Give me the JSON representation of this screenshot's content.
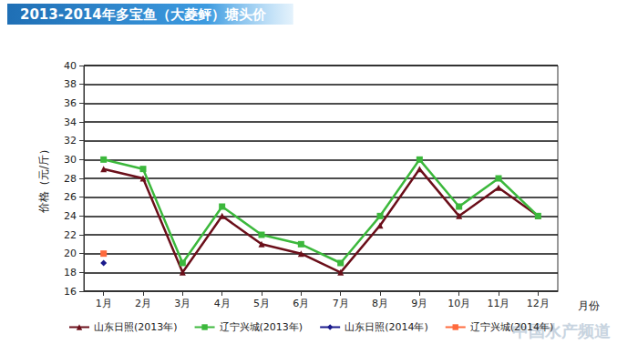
{
  "chart_data": {
    "type": "line",
    "title": "2013-2014年多宝鱼（大菱鲆）塘头价",
    "x_label": "月份",
    "y_label": "价格（元/斤）",
    "annotations": [
      "中国水产频道"
    ],
    "categories": [
      "1月",
      "2月",
      "3月",
      "4月",
      "5月",
      "6月",
      "7月",
      "8月",
      "9月",
      "10月",
      "11月",
      "12月"
    ],
    "series": [
      {
        "name": "山东日照(2013年)",
        "color": "#6b0f1a",
        "marker": "triangle",
        "values": [
          29,
          28,
          18,
          24,
          21,
          20,
          18,
          23,
          29,
          24,
          27,
          24
        ]
      },
      {
        "name": "辽宁兴城(2013年)",
        "color": "#3cb83c",
        "marker": "square",
        "values": [
          30,
          29,
          19,
          25,
          22,
          21,
          19,
          24,
          30,
          25,
          28,
          24
        ]
      },
      {
        "name": "山东日照(2014年)",
        "color": "#1a1a8c",
        "marker": "diamond",
        "values": [
          19,
          null,
          null,
          null,
          null,
          null,
          null,
          null,
          null,
          null,
          null,
          null
        ]
      },
      {
        "name": "辽宁兴城(2014年)",
        "color": "#ff6a3d",
        "marker": "square",
        "values": [
          20,
          null,
          null,
          null,
          null,
          null,
          null,
          null,
          null,
          null,
          null,
          null
        ]
      }
    ],
    "ylim": [
      16,
      40
    ],
    "yticks": [
      16,
      18,
      20,
      22,
      24,
      26,
      28,
      30,
      32,
      34,
      36,
      38,
      40
    ],
    "grid": true,
    "legend": "bottom"
  }
}
